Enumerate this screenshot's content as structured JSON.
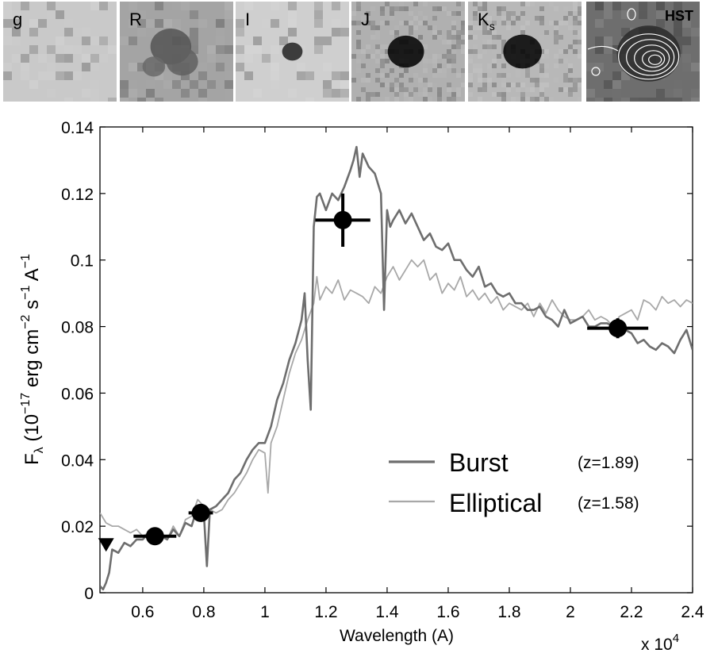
{
  "image_panels": [
    {
      "label": "g",
      "shade": "#c9c9c9",
      "spots": []
    },
    {
      "label": "R",
      "shade": "#a4a4a4",
      "spots": [
        [
          0.45,
          0.45,
          0.18,
          "#555555"
        ],
        [
          0.55,
          0.6,
          0.14,
          "#606060"
        ],
        [
          0.3,
          0.65,
          0.1,
          "#6a6a6a"
        ]
      ]
    },
    {
      "label": "I",
      "shade": "#cfcfcf",
      "spots": [
        [
          0.5,
          0.5,
          0.09,
          "#222222"
        ]
      ]
    },
    {
      "label": "J",
      "shade": "#b0b0b0",
      "spots": [
        [
          0.48,
          0.5,
          0.16,
          "#000000"
        ]
      ]
    },
    {
      "label": "K",
      "label_sub": "s",
      "shade": "#b8b8b8",
      "spots": [
        [
          0.48,
          0.5,
          0.17,
          "#000000"
        ]
      ]
    },
    {
      "label": "HST",
      "shade": "#6e6e6e",
      "spots": [
        [
          0.55,
          0.52,
          0.28,
          "#2a2a2a"
        ]
      ],
      "contours": true
    }
  ],
  "chart_data": {
    "type": "line",
    "xlabel": "Wavelength  (A)",
    "ylabel_main": "F",
    "ylabel_sub": "λ",
    "ylabel_rest_1": " (10",
    "ylabel_exp_1": "−17",
    "ylabel_rest_2": " erg cm",
    "ylabel_exp_2": "−2",
    "ylabel_rest_3": " s",
    "ylabel_exp_3": "−1",
    "ylabel_rest_4": " A",
    "ylabel_exp_4": "−1",
    "x_multiplier_base": "x 10",
    "x_multiplier_exp": "4",
    "xlim": [
      0.46,
      2.4
    ],
    "ylim": [
      0,
      0.14
    ],
    "xticks": [
      0.6,
      0.8,
      1,
      1.2,
      1.4,
      1.6,
      1.8,
      2,
      2.2,
      2.4
    ],
    "xtick_labels": [
      "0.6",
      "0.8",
      "1",
      "1.2",
      "1.4",
      "1.6",
      "1.8",
      "2",
      "2.2",
      "2.4"
    ],
    "yticks": [
      0,
      0.02,
      0.04,
      0.06,
      0.08,
      0.1,
      0.12,
      0.14
    ],
    "ytick_labels": [
      "0",
      "0.02",
      "0.04",
      "0.06",
      "0.08",
      "0.1",
      "0.12",
      "0.14"
    ],
    "series": [
      {
        "name": "Burst",
        "z_label": "(z=1.89)",
        "color": "#6e6e6e",
        "x": [
          0.46,
          0.47,
          0.48,
          0.49,
          0.5,
          0.52,
          0.54,
          0.56,
          0.58,
          0.6,
          0.62,
          0.64,
          0.66,
          0.68,
          0.7,
          0.72,
          0.74,
          0.76,
          0.78,
          0.8,
          0.81,
          0.82,
          0.84,
          0.86,
          0.88,
          0.9,
          0.92,
          0.94,
          0.96,
          0.98,
          1.0,
          1.02,
          1.04,
          1.06,
          1.08,
          1.1,
          1.12,
          1.13,
          1.14,
          1.15,
          1.16,
          1.17,
          1.18,
          1.2,
          1.22,
          1.24,
          1.26,
          1.28,
          1.29,
          1.3,
          1.31,
          1.32,
          1.34,
          1.36,
          1.38,
          1.39,
          1.4,
          1.41,
          1.42,
          1.44,
          1.46,
          1.48,
          1.5,
          1.52,
          1.54,
          1.56,
          1.58,
          1.6,
          1.62,
          1.64,
          1.66,
          1.68,
          1.7,
          1.72,
          1.74,
          1.76,
          1.78,
          1.8,
          1.82,
          1.84,
          1.86,
          1.88,
          1.9,
          1.92,
          1.94,
          1.96,
          1.98,
          2.0,
          2.02,
          2.04,
          2.06,
          2.08,
          2.1,
          2.12,
          2.14,
          2.16,
          2.18,
          2.2,
          2.22,
          2.24,
          2.26,
          2.28,
          2.3,
          2.32,
          2.34,
          2.36,
          2.38,
          2.4
        ],
        "y": [
          0.002,
          0.001,
          0.003,
          0.006,
          0.013,
          0.012,
          0.015,
          0.014,
          0.016,
          0.016,
          0.018,
          0.017,
          0.017,
          0.016,
          0.019,
          0.017,
          0.021,
          0.02,
          0.026,
          0.024,
          0.008,
          0.025,
          0.026,
          0.028,
          0.03,
          0.034,
          0.036,
          0.04,
          0.043,
          0.045,
          0.045,
          0.05,
          0.058,
          0.063,
          0.07,
          0.075,
          0.082,
          0.09,
          0.07,
          0.055,
          0.11,
          0.119,
          0.12,
          0.115,
          0.12,
          0.118,
          0.122,
          0.127,
          0.13,
          0.134,
          0.125,
          0.132,
          0.128,
          0.126,
          0.12,
          0.085,
          0.115,
          0.11,
          0.112,
          0.115,
          0.111,
          0.114,
          0.11,
          0.106,
          0.108,
          0.104,
          0.103,
          0.105,
          0.1,
          0.1,
          0.097,
          0.095,
          0.098,
          0.092,
          0.093,
          0.09,
          0.089,
          0.09,
          0.087,
          0.087,
          0.085,
          0.085,
          0.086,
          0.083,
          0.082,
          0.08,
          0.085,
          0.081,
          0.082,
          0.083,
          0.08,
          0.08,
          0.081,
          0.081,
          0.08,
          0.08,
          0.079,
          0.078,
          0.075,
          0.076,
          0.074,
          0.073,
          0.075,
          0.074,
          0.072,
          0.076,
          0.079,
          0.073
        ]
      },
      {
        "name": "Elliptical",
        "z_label": "(z=1.58)",
        "color": "#a8a8a8",
        "x": [
          0.46,
          0.48,
          0.5,
          0.52,
          0.54,
          0.56,
          0.58,
          0.6,
          0.62,
          0.64,
          0.66,
          0.68,
          0.7,
          0.72,
          0.74,
          0.76,
          0.78,
          0.8,
          0.82,
          0.84,
          0.86,
          0.88,
          0.9,
          0.92,
          0.94,
          0.96,
          0.98,
          1.0,
          1.01,
          1.02,
          1.04,
          1.06,
          1.08,
          1.1,
          1.12,
          1.14,
          1.16,
          1.17,
          1.18,
          1.2,
          1.22,
          1.24,
          1.26,
          1.28,
          1.3,
          1.32,
          1.34,
          1.36,
          1.38,
          1.4,
          1.42,
          1.44,
          1.46,
          1.48,
          1.5,
          1.52,
          1.54,
          1.56,
          1.58,
          1.6,
          1.62,
          1.64,
          1.66,
          1.68,
          1.7,
          1.72,
          1.74,
          1.76,
          1.78,
          1.8,
          1.82,
          1.84,
          1.86,
          1.88,
          1.9,
          1.92,
          1.94,
          1.96,
          1.98,
          2.0,
          2.02,
          2.04,
          2.06,
          2.08,
          2.1,
          2.12,
          2.14,
          2.16,
          2.18,
          2.2,
          2.22,
          2.24,
          2.26,
          2.28,
          2.3,
          2.32,
          2.34,
          2.36,
          2.38,
          2.4
        ],
        "y": [
          0.024,
          0.021,
          0.02,
          0.02,
          0.019,
          0.018,
          0.019,
          0.017,
          0.018,
          0.015,
          0.017,
          0.016,
          0.02,
          0.017,
          0.022,
          0.023,
          0.028,
          0.026,
          0.025,
          0.024,
          0.025,
          0.028,
          0.03,
          0.033,
          0.036,
          0.04,
          0.043,
          0.042,
          0.03,
          0.045,
          0.05,
          0.058,
          0.066,
          0.072,
          0.076,
          0.082,
          0.087,
          0.095,
          0.088,
          0.092,
          0.09,
          0.094,
          0.088,
          0.091,
          0.09,
          0.089,
          0.087,
          0.092,
          0.09,
          0.095,
          0.098,
          0.094,
          0.097,
          0.1,
          0.098,
          0.1,
          0.094,
          0.096,
          0.09,
          0.093,
          0.091,
          0.095,
          0.089,
          0.091,
          0.088,
          0.09,
          0.087,
          0.089,
          0.085,
          0.087,
          0.086,
          0.085,
          0.087,
          0.083,
          0.087,
          0.084,
          0.088,
          0.085,
          0.083,
          0.082,
          0.082,
          0.083,
          0.085,
          0.082,
          0.083,
          0.082,
          0.08,
          0.083,
          0.084,
          0.085,
          0.082,
          0.088,
          0.087,
          0.085,
          0.089,
          0.087,
          0.088,
          0.086,
          0.088,
          0.087
        ]
      }
    ],
    "photometry": [
      {
        "x": 0.64,
        "y": 0.017,
        "xerr": 0.07,
        "yerr": 0.0
      },
      {
        "x": 0.79,
        "y": 0.024,
        "xerr": 0.04,
        "yerr": 0.0
      },
      {
        "x": 1.255,
        "y": 0.112,
        "xerr": 0.09,
        "yerr": 0.008
      },
      {
        "x": 2.155,
        "y": 0.0795,
        "xerr": 0.1,
        "yerr": 0.003
      }
    ],
    "upper_limit": {
      "x": 0.48,
      "y": 0.0145
    },
    "grid": false,
    "legend_placement": "lower-right"
  }
}
